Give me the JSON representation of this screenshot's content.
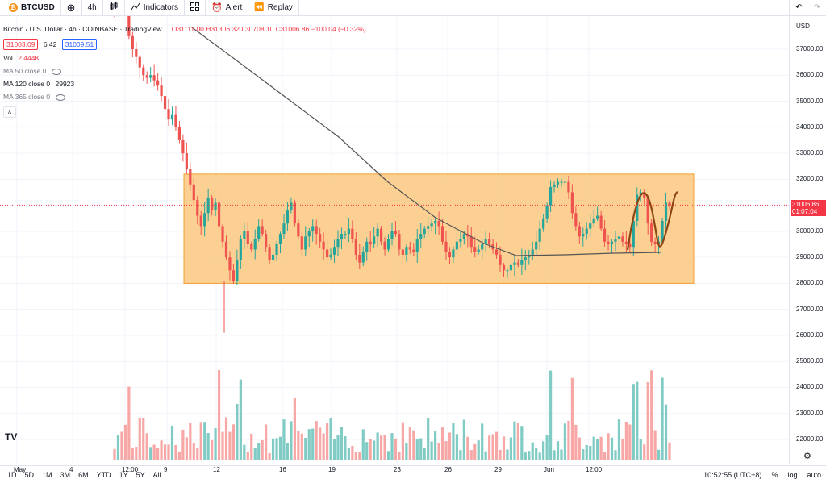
{
  "toolbar": {
    "symbol": "BTCUSD",
    "interval": "4h",
    "indicators_label": "Indicators",
    "alert_label": "Alert",
    "replay_label": "Replay"
  },
  "legend": {
    "title": "Bitcoin / U.S. Dollar · 4h · COINBASE · TradingView",
    "ohlc": "O31111.00 H31306.32 L30708.10 C31006.86 −100.04 (−0.32%)",
    "bid": "31003.09",
    "spread": "6.42",
    "ask": "31009.51",
    "vol_label": "Vol",
    "vol_value": "2.444K",
    "ma50": "MA 50 close 0",
    "ma120_label": "MA 120 close 0",
    "ma120_value": "29923",
    "ma365": "MA 365 close 0"
  },
  "price_axis": {
    "currency": "USD",
    "labels": [
      "37000.00",
      "36000.00",
      "35000.00",
      "34000.00",
      "33000.00",
      "32000.00",
      "31000.00",
      "30000.00",
      "29000.00",
      "28000.00",
      "27000.00",
      "26000.00",
      "25000.00",
      "24000.00",
      "23000.00",
      "22000.00"
    ],
    "last_price": "31006.86",
    "countdown": "01:07:04"
  },
  "time_axis": [
    "May",
    "4",
    "12:00",
    "9",
    "12",
    "16",
    "19",
    "23",
    "26",
    "29",
    "Jun",
    "12:00"
  ],
  "bottombar": {
    "ranges": [
      "1D",
      "5D",
      "1M",
      "3M",
      "6M",
      "YTD",
      "1Y",
      "5Y",
      "All"
    ],
    "clock": "10:52:55 (UTC+8)",
    "percent": "%",
    "log": "log",
    "auto": "auto"
  },
  "colors": {
    "up": "#26a69a",
    "down": "#ef5350",
    "up_vol": "#80cbc4",
    "down_vol": "#f7a8a6",
    "zone": "#fbc880",
    "ma": "#555555",
    "curve": "#8b4513"
  },
  "chart_data": {
    "type": "candlestick",
    "title": "Bitcoin / U.S. Dollar · 4h · COINBASE",
    "ylabel": "USD",
    "ylim": [
      21700,
      37900
    ],
    "zone": {
      "low": 28000,
      "high": 32200
    },
    "ma120_value": 29923,
    "closes": [
      38500,
      39000,
      38800,
      38600,
      37500,
      37000,
      36700,
      36300,
      36000,
      35900,
      36000,
      35800,
      35600,
      35200,
      34700,
      34300,
      34500,
      34000,
      33500,
      33000,
      32400,
      31800,
      31200,
      30600,
      30200,
      30700,
      31300,
      30800,
      31100,
      30200,
      29600,
      29000,
      28500,
      28100,
      28900,
      29700,
      30000,
      29500,
      29300,
      29700,
      30200,
      29900,
      29400,
      28900,
      29100,
      29500,
      29900,
      30300,
      30800,
      31100,
      30300,
      29800,
      29300,
      29800,
      30000,
      30200,
      29900,
      29600,
      29300,
      29000,
      29100,
      29400,
      29700,
      29900,
      29900,
      30100,
      29700,
      29100,
      28800,
      29200,
      29600,
      29500,
      29800,
      30100,
      29600,
      29300,
      29700,
      30000,
      29900,
      29300,
      29100,
      29400,
      29300,
      29200,
      29700,
      29900,
      30100,
      30200,
      30300,
      30400,
      30200,
      29600,
      29200,
      29000,
      29300,
      29600,
      29700,
      29900,
      29800,
      29400,
      29200,
      29300,
      29500,
      29700,
      29500,
      29300,
      29100,
      28700,
      28500,
      28500,
      28700,
      28800,
      28700,
      28900,
      29000,
      29100,
      29300,
      29600,
      30100,
      30500,
      31000,
      31700,
      31800,
      31900,
      31900,
      31900,
      31500,
      30700,
      30200,
      29800,
      29900,
      30100,
      30300,
      30500,
      30600,
      30100,
      29600,
      29500,
      29600,
      29700,
      29800,
      29600,
      29500,
      29400,
      30400,
      31400,
      31500,
      31300,
      30300,
      29600,
      29500,
      29600,
      30400,
      31100,
      31000
    ]
  }
}
